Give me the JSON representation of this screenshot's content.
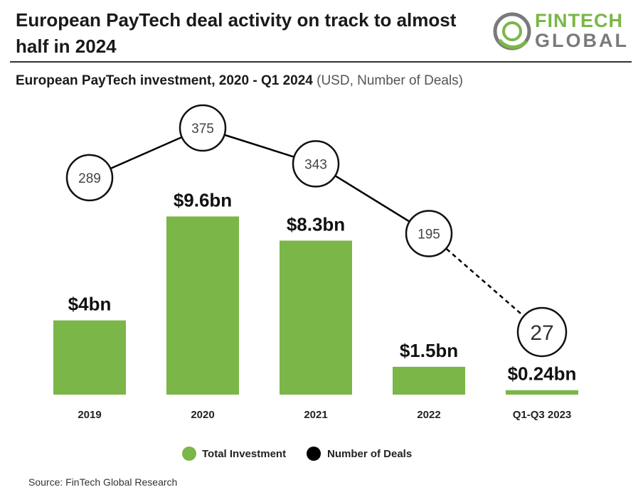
{
  "header": {
    "title": "European PayTech deal activity on track to almost half in 2024"
  },
  "logo": {
    "line1": "FINTECH",
    "line2": "GLOBAL",
    "accent_color": "#7ab648",
    "gray_color": "#7a7a7a"
  },
  "subtitle": {
    "bold": "European PayTech investment, 2020 - Q1 2024",
    "light": "(USD, Number of Deals)"
  },
  "chart_data": {
    "type": "bar",
    "categories": [
      "2019",
      "2020",
      "2021",
      "2022",
      "Q1-Q3 2023"
    ],
    "series": [
      {
        "name": "Total Investment",
        "values": [
          4,
          9.6,
          8.3,
          1.5,
          0.24
        ],
        "labels": [
          "$4bn",
          "$9.6bn",
          "$8.3bn",
          "$1.5bn",
          "$0.24bn"
        ],
        "color": "#7ab648"
      },
      {
        "name": "Number of Deals",
        "type": "line",
        "values": [
          289,
          375,
          343,
          195,
          27
        ],
        "color": "#000000",
        "last_segment_dashed": true
      }
    ],
    "legend": "bottom"
  },
  "source": "Source: FinTech Global Research"
}
